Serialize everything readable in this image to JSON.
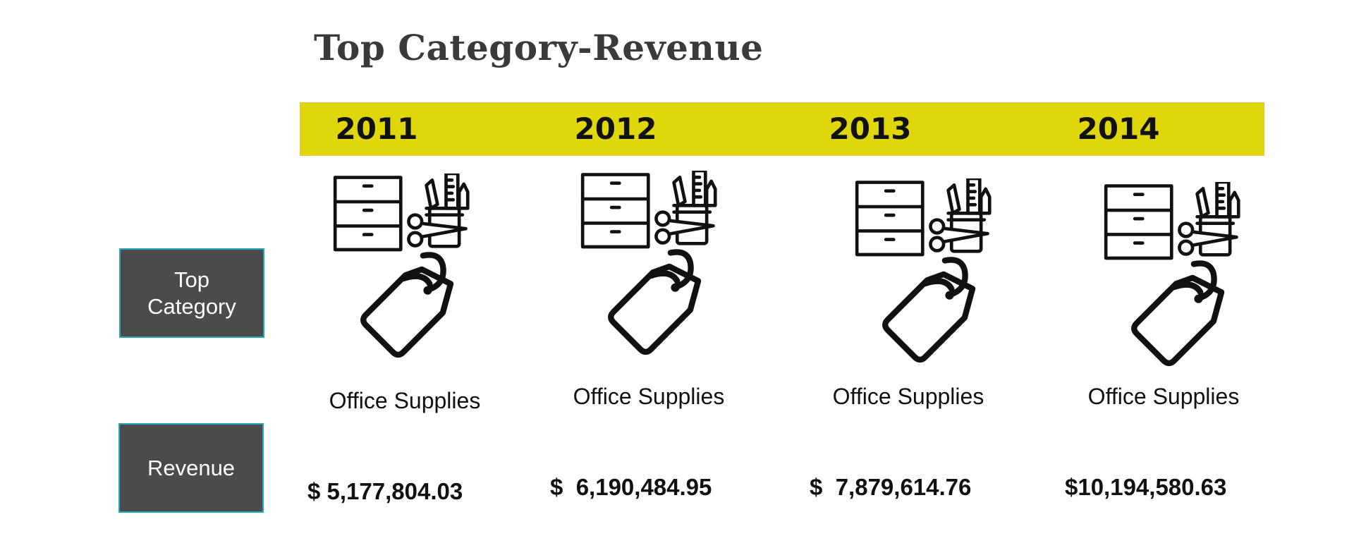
{
  "title": "Top Category-Revenue",
  "row_labels": {
    "top_category": "Top\nCategory",
    "revenue": "Revenue"
  },
  "years": [
    {
      "year": "2011",
      "category": "Office Supplies",
      "revenue": "$ 5,177,804.03"
    },
    {
      "year": "2012",
      "category": "Office Supplies",
      "revenue": "$  6,190,484.95"
    },
    {
      "year": "2013",
      "category": "Office Supplies",
      "revenue": "$  7,879,614.76"
    },
    {
      "year": "2014",
      "category": "Office Supplies",
      "revenue": "$10,194,580.63"
    }
  ],
  "icon": "office-supplies-icon",
  "colors": {
    "band": "#e0d60c",
    "label_bg": "#4b4b4b",
    "label_border": "#2aa7b5"
  }
}
